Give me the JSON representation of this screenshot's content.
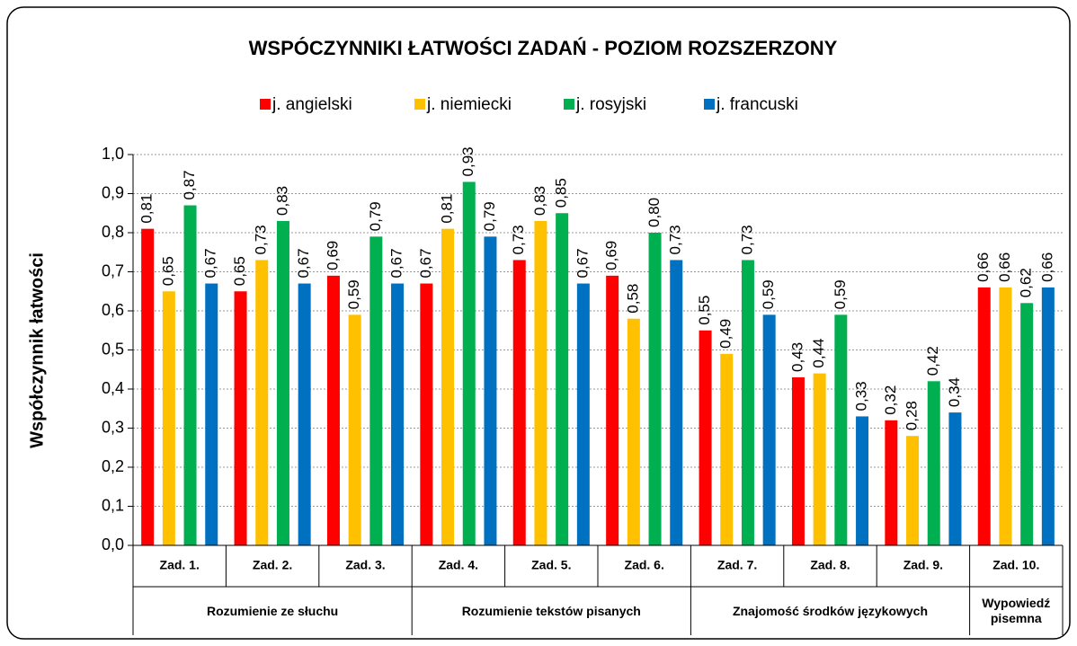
{
  "chart_data": {
    "type": "bar",
    "title": "WSPÓCZYNNIKI ŁATWOŚCI ZADAŃ - POZIOM ROZSZERZONY",
    "y_label": "Współczynnik łatwości",
    "categories": [
      "Zad. 1.",
      "Zad. 2.",
      "Zad. 3.",
      "Zad. 4.",
      "Zad. 5.",
      "Zad. 6.",
      "Zad. 7.",
      "Zad. 8.",
      "Zad. 9.",
      "Zad. 10."
    ],
    "groups": [
      {
        "label": "Rozumienie ze słuchu",
        "count": 3
      },
      {
        "label": "Rozumienie tekstów pisanych",
        "count": 3
      },
      {
        "label": "Znajomość środków językowych",
        "count": 3
      },
      {
        "label": "Wypowiedź pisemna",
        "count": 1
      }
    ],
    "series": [
      {
        "name": "j. angielski",
        "color": "#ff0000",
        "values": [
          0.81,
          0.65,
          0.69,
          0.67,
          0.73,
          0.69,
          0.55,
          0.43,
          0.32,
          0.66
        ],
        "value_labels": [
          "0,81",
          "0,65",
          "0,69",
          "0,67",
          "0,73",
          "0,69",
          "0,55",
          "0,43",
          "0,32",
          "0,66"
        ]
      },
      {
        "name": "j. niemiecki",
        "color": "#ffc000",
        "values": [
          0.65,
          0.73,
          0.59,
          0.81,
          0.83,
          0.58,
          0.49,
          0.44,
          0.28,
          0.66
        ],
        "value_labels": [
          "0,65",
          "0,73",
          "0,59",
          "0,81",
          "0,83",
          "0,58",
          "0,49",
          "0,44",
          "0,28",
          "0,66"
        ]
      },
      {
        "name": "j. rosyjski",
        "color": "#00b050",
        "values": [
          0.87,
          0.83,
          0.79,
          0.93,
          0.85,
          0.8,
          0.73,
          0.59,
          0.42,
          0.62
        ],
        "value_labels": [
          "0,87",
          "0,83",
          "0,79",
          "0,93",
          "0,85",
          "0,80",
          "0,73",
          "0,59",
          "0,42",
          "0,62"
        ]
      },
      {
        "name": "j. francuski",
        "color": "#0070c0",
        "values": [
          0.67,
          0.67,
          0.67,
          0.79,
          0.67,
          0.73,
          0.59,
          0.33,
          0.34,
          0.66
        ],
        "value_labels": [
          "0,67",
          "0,67",
          "0,67",
          "0,79",
          "0,67",
          "0,73",
          "0,59",
          "0,33",
          "0,34",
          "0,66"
        ]
      }
    ],
    "ylim": [
      0,
      1
    ],
    "yticks": [
      {
        "value": 0,
        "label": "0,0"
      },
      {
        "value": 0.1,
        "label": "0,1"
      },
      {
        "value": 0.2,
        "label": "0,2"
      },
      {
        "value": 0.3,
        "label": "0,3"
      },
      {
        "value": 0.4,
        "label": "0,4"
      },
      {
        "value": 0.5,
        "label": "0,5"
      },
      {
        "value": 0.6,
        "label": "0,6"
      },
      {
        "value": 0.7,
        "label": "0,7"
      },
      {
        "value": 0.8,
        "label": "0,8"
      },
      {
        "value": 0.9,
        "label": "0,9"
      },
      {
        "value": 1,
        "label": "1,0"
      }
    ],
    "grid": true
  }
}
